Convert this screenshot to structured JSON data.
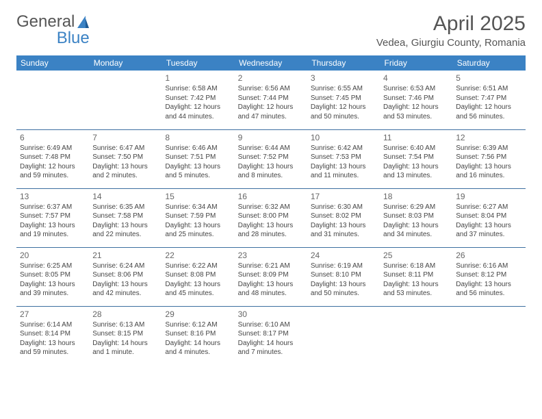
{
  "brand": {
    "part1": "General",
    "part2": "Blue"
  },
  "title": "April 2025",
  "location": "Vedea, Giurgiu County, Romania",
  "colors": {
    "header_bg": "#3b82c4",
    "header_text": "#ffffff",
    "border": "#3b6ea0",
    "body_text": "#444444",
    "title_text": "#555555",
    "background": "#ffffff"
  },
  "weekdays": [
    "Sunday",
    "Monday",
    "Tuesday",
    "Wednesday",
    "Thursday",
    "Friday",
    "Saturday"
  ],
  "weeks": [
    [
      null,
      null,
      {
        "n": "1",
        "sr": "6:58 AM",
        "ss": "7:42 PM",
        "dl": "12 hours and 44 minutes."
      },
      {
        "n": "2",
        "sr": "6:56 AM",
        "ss": "7:44 PM",
        "dl": "12 hours and 47 minutes."
      },
      {
        "n": "3",
        "sr": "6:55 AM",
        "ss": "7:45 PM",
        "dl": "12 hours and 50 minutes."
      },
      {
        "n": "4",
        "sr": "6:53 AM",
        "ss": "7:46 PM",
        "dl": "12 hours and 53 minutes."
      },
      {
        "n": "5",
        "sr": "6:51 AM",
        "ss": "7:47 PM",
        "dl": "12 hours and 56 minutes."
      }
    ],
    [
      {
        "n": "6",
        "sr": "6:49 AM",
        "ss": "7:48 PM",
        "dl": "12 hours and 59 minutes."
      },
      {
        "n": "7",
        "sr": "6:47 AM",
        "ss": "7:50 PM",
        "dl": "13 hours and 2 minutes."
      },
      {
        "n": "8",
        "sr": "6:46 AM",
        "ss": "7:51 PM",
        "dl": "13 hours and 5 minutes."
      },
      {
        "n": "9",
        "sr": "6:44 AM",
        "ss": "7:52 PM",
        "dl": "13 hours and 8 minutes."
      },
      {
        "n": "10",
        "sr": "6:42 AM",
        "ss": "7:53 PM",
        "dl": "13 hours and 11 minutes."
      },
      {
        "n": "11",
        "sr": "6:40 AM",
        "ss": "7:54 PM",
        "dl": "13 hours and 13 minutes."
      },
      {
        "n": "12",
        "sr": "6:39 AM",
        "ss": "7:56 PM",
        "dl": "13 hours and 16 minutes."
      }
    ],
    [
      {
        "n": "13",
        "sr": "6:37 AM",
        "ss": "7:57 PM",
        "dl": "13 hours and 19 minutes."
      },
      {
        "n": "14",
        "sr": "6:35 AM",
        "ss": "7:58 PM",
        "dl": "13 hours and 22 minutes."
      },
      {
        "n": "15",
        "sr": "6:34 AM",
        "ss": "7:59 PM",
        "dl": "13 hours and 25 minutes."
      },
      {
        "n": "16",
        "sr": "6:32 AM",
        "ss": "8:00 PM",
        "dl": "13 hours and 28 minutes."
      },
      {
        "n": "17",
        "sr": "6:30 AM",
        "ss": "8:02 PM",
        "dl": "13 hours and 31 minutes."
      },
      {
        "n": "18",
        "sr": "6:29 AM",
        "ss": "8:03 PM",
        "dl": "13 hours and 34 minutes."
      },
      {
        "n": "19",
        "sr": "6:27 AM",
        "ss": "8:04 PM",
        "dl": "13 hours and 37 minutes."
      }
    ],
    [
      {
        "n": "20",
        "sr": "6:25 AM",
        "ss": "8:05 PM",
        "dl": "13 hours and 39 minutes."
      },
      {
        "n": "21",
        "sr": "6:24 AM",
        "ss": "8:06 PM",
        "dl": "13 hours and 42 minutes."
      },
      {
        "n": "22",
        "sr": "6:22 AM",
        "ss": "8:08 PM",
        "dl": "13 hours and 45 minutes."
      },
      {
        "n": "23",
        "sr": "6:21 AM",
        "ss": "8:09 PM",
        "dl": "13 hours and 48 minutes."
      },
      {
        "n": "24",
        "sr": "6:19 AM",
        "ss": "8:10 PM",
        "dl": "13 hours and 50 minutes."
      },
      {
        "n": "25",
        "sr": "6:18 AM",
        "ss": "8:11 PM",
        "dl": "13 hours and 53 minutes."
      },
      {
        "n": "26",
        "sr": "6:16 AM",
        "ss": "8:12 PM",
        "dl": "13 hours and 56 minutes."
      }
    ],
    [
      {
        "n": "27",
        "sr": "6:14 AM",
        "ss": "8:14 PM",
        "dl": "13 hours and 59 minutes."
      },
      {
        "n": "28",
        "sr": "6:13 AM",
        "ss": "8:15 PM",
        "dl": "14 hours and 1 minute."
      },
      {
        "n": "29",
        "sr": "6:12 AM",
        "ss": "8:16 PM",
        "dl": "14 hours and 4 minutes."
      },
      {
        "n": "30",
        "sr": "6:10 AM",
        "ss": "8:17 PM",
        "dl": "14 hours and 7 minutes."
      },
      null,
      null,
      null
    ]
  ],
  "labels": {
    "sunrise": "Sunrise: ",
    "sunset": "Sunset: ",
    "daylight": "Daylight: "
  }
}
